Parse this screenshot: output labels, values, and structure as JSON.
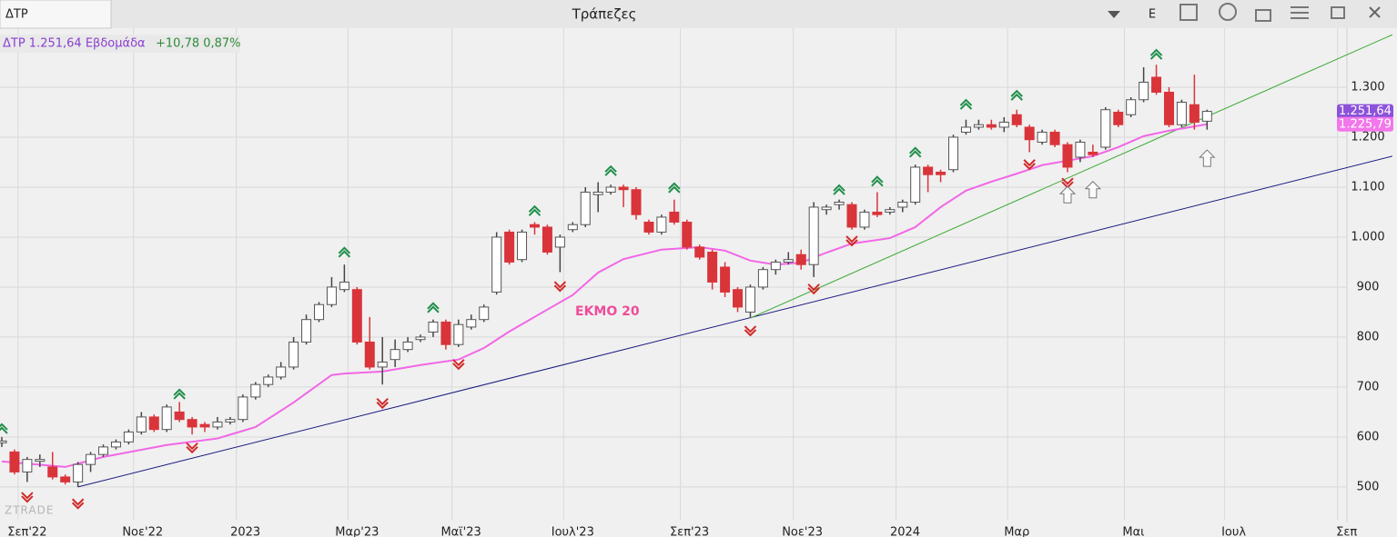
{
  "chart_data": {
    "type": "candlestick",
    "tab": "ΔΤΡ",
    "title": "Τράπεζες",
    "mode": "E",
    "info": {
      "symbol": "ΔΤΡ 1.251,64 Εβδομάδα",
      "change": "+10,78 0,87%"
    },
    "annotation": "ΕΚΜΟ 20",
    "watermark": "ZTRADE",
    "up_color": "#ffffff",
    "down_color": "#d9343a",
    "open": [
      590,
      570,
      530,
      552,
      540,
      520,
      510,
      545,
      565,
      580,
      590,
      610,
      640,
      615,
      650,
      635,
      625,
      620,
      630,
      635,
      680,
      705,
      720,
      740,
      790,
      835,
      865,
      895,
      895,
      790,
      740,
      755,
      775,
      795,
      810,
      830,
      785,
      820,
      835,
      890,
      1010,
      955,
      1025,
      1020,
      980,
      1015,
      1025,
      1085,
      1090,
      1100,
      1095,
      1030,
      1010,
      1050,
      1030,
      980,
      970,
      940,
      895,
      850,
      900,
      935,
      950,
      965,
      945,
      1055,
      1065,
      1065,
      1020,
      1050,
      1050,
      1060,
      1070,
      1140,
      1130,
      1135,
      1210,
      1220,
      1225,
      1220,
      1245,
      1220,
      1190,
      1210,
      1185,
      1160,
      1170,
      1180,
      1250,
      1245,
      1275,
      1320,
      1290,
      1225,
      1265,
      1232
    ],
    "high": [
      600,
      575,
      560,
      565,
      570,
      525,
      550,
      570,
      585,
      595,
      615,
      650,
      645,
      665,
      670,
      640,
      630,
      640,
      640,
      685,
      710,
      725,
      750,
      800,
      845,
      870,
      920,
      945,
      900,
      840,
      800,
      795,
      800,
      805,
      835,
      835,
      835,
      845,
      865,
      1010,
      1015,
      1015,
      1030,
      1025,
      1005,
      1030,
      1100,
      1110,
      1105,
      1105,
      1100,
      1035,
      1045,
      1075,
      1035,
      985,
      975,
      950,
      900,
      905,
      940,
      955,
      970,
      975,
      1070,
      1065,
      1075,
      1070,
      1055,
      1090,
      1060,
      1075,
      1145,
      1145,
      1135,
      1205,
      1235,
      1235,
      1235,
      1240,
      1255,
      1225,
      1215,
      1215,
      1190,
      1195,
      1185,
      1260,
      1255,
      1280,
      1340,
      1345,
      1300,
      1275,
      1325,
      1255
    ],
    "low": [
      580,
      525,
      510,
      540,
      515,
      505,
      500,
      530,
      560,
      575,
      585,
      605,
      610,
      610,
      630,
      605,
      610,
      615,
      625,
      630,
      675,
      700,
      715,
      735,
      785,
      830,
      860,
      890,
      785,
      735,
      705,
      740,
      770,
      790,
      800,
      775,
      780,
      815,
      830,
      885,
      945,
      950,
      1005,
      965,
      930,
      1010,
      1020,
      1050,
      1085,
      1060,
      1035,
      1005,
      1005,
      1025,
      975,
      955,
      895,
      880,
      850,
      840,
      895,
      925,
      945,
      935,
      920,
      1045,
      1055,
      1015,
      1015,
      1040,
      1045,
      1050,
      1065,
      1090,
      1110,
      1130,
      1205,
      1215,
      1215,
      1210,
      1220,
      1170,
      1185,
      1180,
      1130,
      1150,
      1160,
      1175,
      1220,
      1240,
      1270,
      1285,
      1220,
      1220,
      1215,
      1215
    ],
    "close": [
      592,
      530,
      555,
      555,
      520,
      510,
      545,
      565,
      580,
      590,
      610,
      640,
      615,
      660,
      635,
      620,
      620,
      630,
      635,
      680,
      705,
      720,
      740,
      790,
      835,
      865,
      900,
      910,
      790,
      740,
      750,
      775,
      790,
      800,
      830,
      785,
      825,
      835,
      860,
      1000,
      950,
      1010,
      1020,
      970,
      1000,
      1025,
      1090,
      1090,
      1100,
      1095,
      1045,
      1010,
      1040,
      1030,
      980,
      960,
      910,
      890,
      860,
      900,
      935,
      950,
      955,
      945,
      1060,
      1060,
      1070,
      1020,
      1050,
      1045,
      1055,
      1070,
      1140,
      1125,
      1125,
      1200,
      1220,
      1225,
      1220,
      1230,
      1225,
      1195,
      1210,
      1185,
      1140,
      1190,
      1165,
      1255,
      1225,
      1275,
      1310,
      1290,
      1225,
      1270,
      1230,
      1251.64
    ],
    "ema": {
      "color": "#f266e6",
      "x": [
        0,
        5,
        8,
        13,
        17,
        20,
        23,
        26,
        27,
        30,
        33,
        36,
        38,
        40,
        43,
        45,
        47,
        49,
        52,
        55,
        57,
        59,
        61,
        63,
        65,
        67,
        70,
        72,
        74,
        76,
        78,
        80,
        82,
        84,
        86,
        88,
        90,
        92,
        95
      ],
      "values": [
        551,
        540,
        560,
        584,
        597,
        620,
        669,
        724,
        727,
        731,
        744,
        755,
        778,
        811,
        855,
        884,
        929,
        956,
        975,
        980,
        973,
        953,
        945,
        949,
        969,
        987,
        998,
        1020,
        1060,
        1093,
        1111,
        1127,
        1144,
        1153,
        1162,
        1180,
        1202,
        1213,
        1225.79
      ]
    },
    "trendlines": [
      {
        "color": "#1a1a80",
        "x": [
          6,
          109.6
        ],
        "values": [
          500,
          1162
        ]
      },
      {
        "color": "#3aa832",
        "x": [
          59,
          109.6
        ],
        "values": [
          838,
          1405
        ]
      }
    ],
    "up_signals": {
      "color": "#1f8f4a",
      "x": [
        0,
        14,
        27,
        34,
        42,
        48,
        53,
        66,
        69,
        72,
        76,
        80,
        91
      ],
      "values": [
        620,
        689,
        973,
        862,
        1056,
        1136,
        1102,
        1098,
        1115,
        1173,
        1269,
        1287,
        1369
      ]
    },
    "down_signals": {
      "color": "#d12a2a",
      "x": [
        2,
        6,
        15,
        30,
        36,
        44,
        59,
        64,
        67,
        81,
        84
      ],
      "values": [
        476,
        463,
        575,
        664,
        742,
        898,
        809,
        893,
        989,
        1142,
        1105
      ]
    },
    "hollow_arrows": {
      "x": [
        84,
        86,
        95
      ],
      "values": [
        1085,
        1095,
        1158
      ]
    },
    "price_labels": [
      {
        "value": 1251.64,
        "label": "1.251,64",
        "color": "#8c52d9"
      },
      {
        "value": 1225.79,
        "label": "1.225,79",
        "color": "#f277ea"
      }
    ],
    "xlim": [
      -0.1435,
      109.97
    ],
    "ylim": [
      438,
      1420
    ],
    "yticks": [
      500,
      600,
      700,
      800,
      900,
      {
        "value": 1000,
        "label": "1.000"
      },
      {
        "value": 1100,
        "label": "1.100"
      },
      {
        "value": 1200,
        "label": "1.200"
      },
      {
        "value": 1300,
        "label": "1.300"
      }
    ],
    "xticks": [
      {
        "value": 2.0,
        "label": "Σεπ'22"
      },
      {
        "value": 11.1,
        "label": "Νοε'22"
      },
      {
        "value": 19.2,
        "label": "2023"
      },
      {
        "value": 28.0,
        "label": "Μαρ'23"
      },
      {
        "value": 36.2,
        "label": "Μαϊ'23"
      },
      {
        "value": 45.0,
        "label": "Ιουλ'23"
      },
      {
        "value": 54.2,
        "label": "Σεπ'23"
      },
      {
        "value": 63.1,
        "label": "Νοε'23"
      },
      {
        "value": 71.2,
        "label": "2024"
      },
      {
        "value": 80.0,
        "label": "Μαρ"
      },
      {
        "value": 89.2,
        "label": "Μαι"
      },
      {
        "value": 97.1,
        "label": "Ιουλ"
      },
      {
        "value": 106.0,
        "label": "Σεπ"
      }
    ],
    "grid": true
  }
}
